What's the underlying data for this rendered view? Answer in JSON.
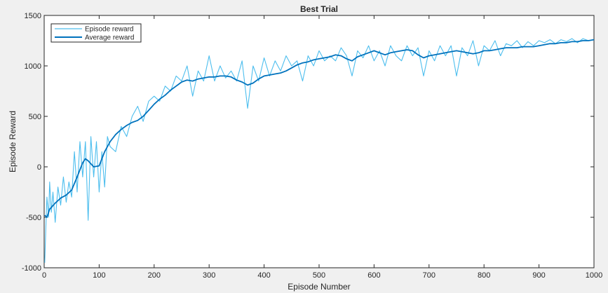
{
  "chart_data": {
    "type": "line",
    "title": "Best Trial",
    "xlabel": "Episode Number",
    "ylabel": "Episode Reward",
    "xlim": [
      0,
      1000
    ],
    "ylim": [
      -1000,
      1500
    ],
    "xticks": [
      0,
      100,
      200,
      300,
      400,
      500,
      600,
      700,
      800,
      900,
      1000
    ],
    "yticks": [
      -1000,
      -500,
      0,
      500,
      1000,
      1500
    ],
    "grid": false,
    "legend_position": "top-left",
    "series": [
      {
        "name": "Episode reward",
        "color": "#4dbeee",
        "x": [
          1,
          3,
          5,
          8,
          10,
          13,
          16,
          20,
          25,
          30,
          35,
          40,
          45,
          50,
          55,
          60,
          65,
          70,
          75,
          80,
          85,
          90,
          95,
          100,
          105,
          110,
          115,
          120,
          130,
          140,
          150,
          160,
          170,
          180,
          190,
          200,
          210,
          220,
          230,
          240,
          250,
          260,
          270,
          280,
          290,
          300,
          310,
          320,
          330,
          340,
          350,
          360,
          370,
          380,
          390,
          400,
          410,
          420,
          430,
          440,
          450,
          460,
          470,
          480,
          490,
          500,
          510,
          520,
          530,
          540,
          550,
          560,
          570,
          580,
          590,
          600,
          610,
          620,
          630,
          640,
          650,
          660,
          670,
          680,
          690,
          700,
          710,
          720,
          730,
          740,
          750,
          760,
          770,
          780,
          790,
          800,
          810,
          820,
          830,
          840,
          850,
          860,
          870,
          880,
          890,
          900,
          910,
          920,
          930,
          940,
          950,
          960,
          970,
          980,
          990,
          1000
        ],
        "y": [
          -950,
          -600,
          -300,
          -500,
          -150,
          -450,
          -250,
          -550,
          -200,
          -380,
          -100,
          -350,
          -150,
          -300,
          150,
          -250,
          250,
          -100,
          250,
          -530,
          300,
          -100,
          250,
          -250,
          150,
          -200,
          300,
          200,
          150,
          400,
          300,
          500,
          600,
          450,
          650,
          700,
          650,
          800,
          750,
          900,
          850,
          1000,
          700,
          950,
          850,
          1100,
          850,
          1000,
          880,
          950,
          850,
          1050,
          580,
          1000,
          850,
          1080,
          900,
          1050,
          950,
          1100,
          1000,
          1050,
          850,
          1100,
          1000,
          1150,
          1050,
          1100,
          1050,
          1180,
          1100,
          900,
          1150,
          1080,
          1200,
          1050,
          1150,
          1000,
          1200,
          1100,
          1050,
          1200,
          1100,
          1180,
          900,
          1150,
          1050,
          1200,
          1100,
          1200,
          900,
          1180,
          1100,
          1250,
          1000,
          1200,
          1150,
          1250,
          1100,
          1220,
          1200,
          1250,
          1180,
          1240,
          1200,
          1250,
          1230,
          1260,
          1220,
          1260,
          1240,
          1270,
          1230,
          1270,
          1250,
          1260
        ]
      },
      {
        "name": "Average reward",
        "color": "#0072bd",
        "x": [
          1,
          5,
          10,
          20,
          30,
          40,
          50,
          60,
          70,
          75,
          80,
          90,
          100,
          110,
          120,
          130,
          140,
          150,
          160,
          170,
          180,
          190,
          200,
          210,
          220,
          230,
          240,
          250,
          260,
          270,
          280,
          290,
          300,
          310,
          320,
          330,
          340,
          350,
          360,
          370,
          380,
          390,
          400,
          410,
          420,
          430,
          440,
          450,
          460,
          470,
          480,
          490,
          500,
          510,
          520,
          530,
          540,
          550,
          560,
          570,
          580,
          590,
          600,
          610,
          620,
          630,
          640,
          650,
          660,
          670,
          680,
          690,
          700,
          710,
          720,
          730,
          740,
          750,
          760,
          770,
          780,
          790,
          800,
          810,
          820,
          830,
          840,
          850,
          860,
          870,
          880,
          890,
          900,
          910,
          920,
          930,
          940,
          950,
          960,
          970,
          980,
          990,
          1000
        ],
        "y": [
          -480,
          -500,
          -420,
          -360,
          -310,
          -280,
          -230,
          -100,
          40,
          80,
          60,
          0,
          10,
          150,
          250,
          320,
          370,
          410,
          440,
          460,
          500,
          560,
          620,
          670,
          710,
          760,
          800,
          840,
          860,
          850,
          870,
          880,
          890,
          890,
          900,
          900,
          890,
          860,
          840,
          810,
          830,
          870,
          900,
          910,
          920,
          930,
          950,
          980,
          1010,
          1030,
          1040,
          1060,
          1070,
          1080,
          1090,
          1110,
          1100,
          1070,
          1050,
          1090,
          1110,
          1130,
          1150,
          1130,
          1110,
          1130,
          1140,
          1150,
          1160,
          1150,
          1110,
          1080,
          1100,
          1110,
          1120,
          1130,
          1140,
          1150,
          1140,
          1130,
          1120,
          1130,
          1150,
          1150,
          1160,
          1170,
          1180,
          1180,
          1180,
          1190,
          1190,
          1190,
          1200,
          1210,
          1220,
          1220,
          1230,
          1230,
          1240,
          1240,
          1250,
          1250,
          1260
        ]
      }
    ]
  }
}
